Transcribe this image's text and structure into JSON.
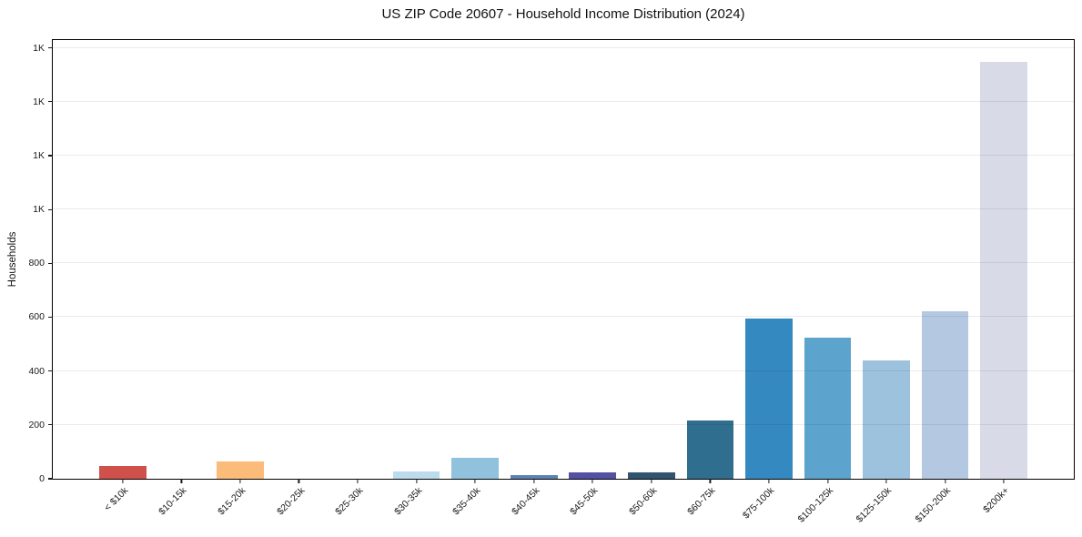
{
  "title": "US ZIP Code 20607 - Household Income Distribution (2024)",
  "chart_data": {
    "type": "bar",
    "title": "US ZIP Code 20607 - Household Income Distribution (2024)",
    "xlabel": "",
    "ylabel": "Households",
    "categories": [
      "< $10k",
      "$10-15k",
      "$15-20k",
      "$20-25k",
      "$25-30k",
      "$30-35k",
      "$35-40k",
      "$40-45k",
      "$45-50k",
      "$50-60k",
      "$60-75k",
      "$75-100k",
      "$100-125k",
      "$125-150k",
      "$150-200k",
      "$200k+"
    ],
    "values": [
      46,
      0,
      63,
      0,
      0,
      27,
      77,
      15,
      25,
      23,
      216,
      595,
      525,
      438,
      623,
      1549
    ],
    "bar_colors": [
      "#d0514c",
      "#f08a5c",
      "#fbbc79",
      "#fdd9a8",
      "#e3eef5",
      "#bcdcee",
      "#90c1dd",
      "#5e82b5",
      "#5450a3",
      "#2f5570",
      "#2f6e8e",
      "#3389c0",
      "#5ca4cd",
      "#9cc2de",
      "#b5c8e1",
      "#d8dae8"
    ],
    "ylim": [
      0,
      1629
    ],
    "yticks": [
      {
        "v": 0,
        "label": "0"
      },
      {
        "v": 200,
        "label": "200"
      },
      {
        "v": 400,
        "label": "400"
      },
      {
        "v": 600,
        "label": "600"
      },
      {
        "v": 800,
        "label": "800"
      },
      {
        "v": 1000,
        "label": "1K"
      },
      {
        "v": 1200,
        "label": "1K"
      },
      {
        "v": 1400,
        "label": "1K"
      },
      {
        "v": 1600,
        "label": "1K"
      }
    ],
    "xlim": [
      -1.19,
      16.19
    ],
    "bar_width_units": 0.8,
    "grid": "horizontal",
    "legend": "none",
    "background_color": "#ffffff",
    "spine_color": "#000000",
    "grid_color": "#e8e8e8",
    "tick_label_color": "#1a1a1a"
  }
}
